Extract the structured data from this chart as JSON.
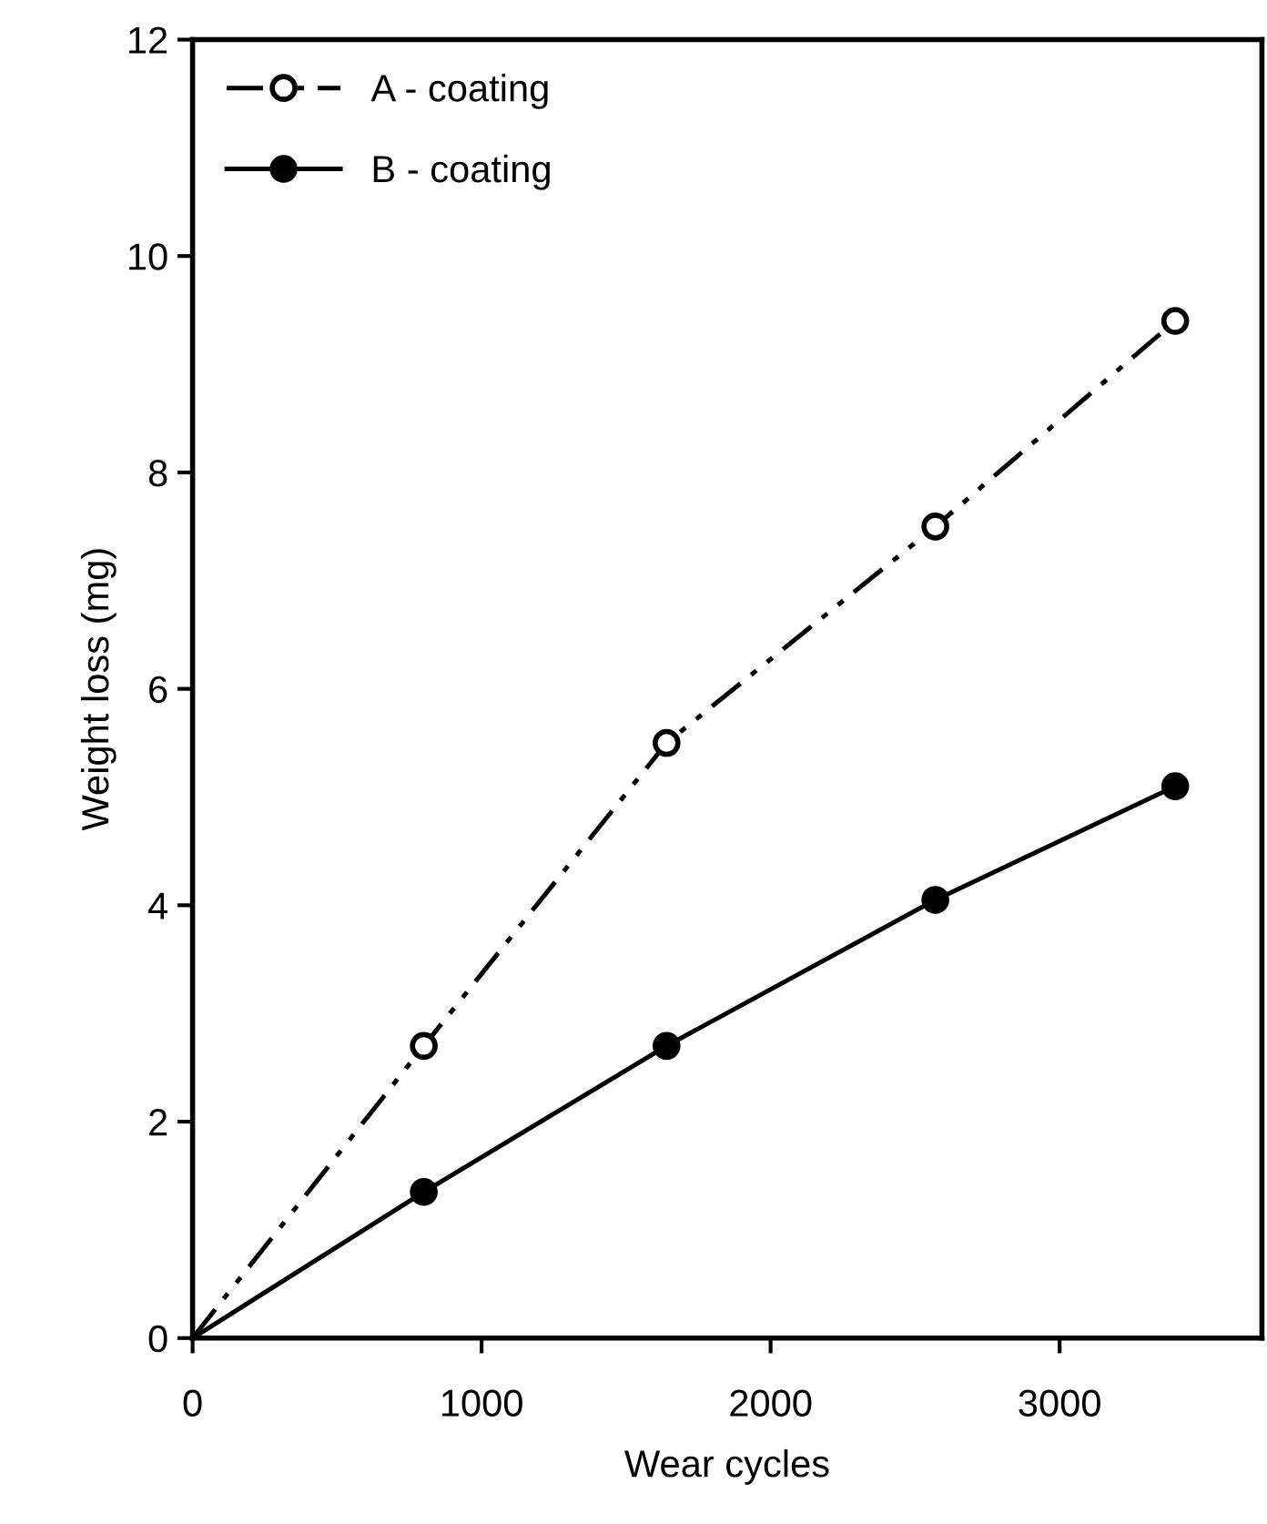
{
  "chart_data": {
    "type": "line",
    "xlabel": "Wear cycles",
    "ylabel": "Weight loss (mg)",
    "xlim": [
      0,
      3700
    ],
    "ylim": [
      0,
      12
    ],
    "xticks": [
      0,
      1000,
      2000,
      3000
    ],
    "yticks": [
      0,
      2,
      4,
      6,
      8,
      10,
      12
    ],
    "grid": false,
    "legend": "top left",
    "series": [
      {
        "name": "A - coating",
        "color": "#000000",
        "x": [
          0,
          800,
          1640,
          2570,
          3400
        ],
        "values": [
          0,
          2.7,
          5.5,
          7.5,
          9.4
        ],
        "line_style": "dashdot",
        "marker": "circle"
      },
      {
        "name": "B - coating",
        "color": "#000000",
        "x": [
          0,
          800,
          1640,
          2570,
          3400
        ],
        "values": [
          0,
          1.35,
          2.7,
          4.05,
          5.1
        ],
        "line_style": "solid",
        "marker": "circle"
      }
    ]
  }
}
